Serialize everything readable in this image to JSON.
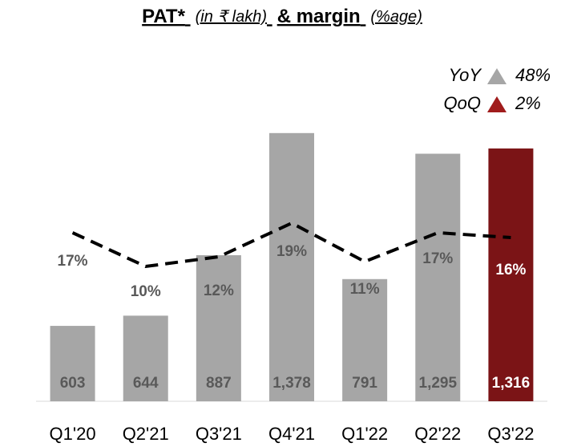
{
  "chart_data": {
    "type": "bar",
    "title": [
      "PAT*",
      "(in ₹ lakh)",
      "& margin",
      "(%age)"
    ],
    "categories": [
      "Q1'20",
      "Q2'21",
      "Q3'21",
      "Q4'21",
      "Q1'22",
      "Q2'22",
      "Q3'22"
    ],
    "series": [
      {
        "type": "bar",
        "values": [
          603,
          644,
          887,
          1378,
          791,
          1295,
          1316
        ],
        "value_labels": [
          "603",
          "644",
          "887",
          "1,378",
          "791",
          "1,295",
          "1,316"
        ],
        "colors": [
          "#a6a6a6",
          "#a6a6a6",
          "#a6a6a6",
          "#a6a6a6",
          "#a6a6a6",
          "#a6a6a6",
          "#7b1416"
        ]
      },
      {
        "type": "line",
        "axis": "y2",
        "color": "#000000",
        "values": [
          17,
          10,
          12,
          19,
          11,
          17,
          16
        ],
        "value_labels": [
          "17%",
          "10%",
          "12%",
          "19%",
          "11%",
          "17%",
          "16%"
        ]
      }
    ],
    "ylim": [
      300,
      1500
    ],
    "y2lim": [
      -18,
      44
    ],
    "annotations": [
      {
        "label": "YoY",
        "value": "48%",
        "color": "#a6a6a6"
      },
      {
        "label": "QoQ",
        "value": "2%",
        "color": "#a01c1c"
      }
    ]
  }
}
